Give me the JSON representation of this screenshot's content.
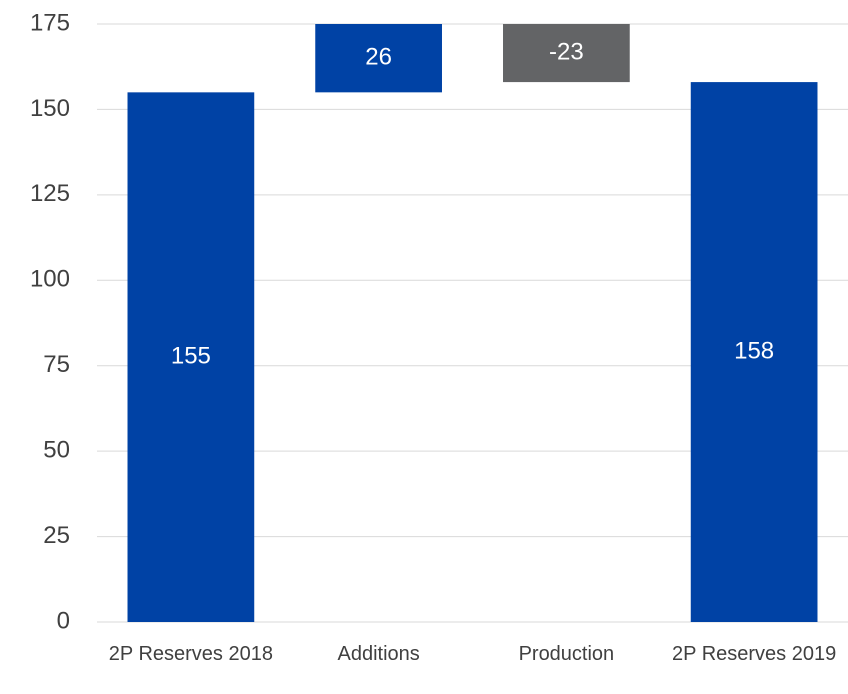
{
  "chart_data": {
    "type": "waterfall",
    "categories": [
      "2P Reserves 2018",
      "Additions",
      "Production",
      "2P Reserves 2019"
    ],
    "values": [
      155,
      26,
      -23,
      158
    ],
    "totals": [
      true,
      false,
      false,
      true
    ],
    "colors": [
      "#0042a5",
      "#0042a5",
      "#636466",
      "#0042a5"
    ],
    "ylim": [
      0,
      175
    ],
    "yticks": [
      0,
      25,
      50,
      75,
      100,
      125,
      150,
      175
    ],
    "grid": true
  }
}
